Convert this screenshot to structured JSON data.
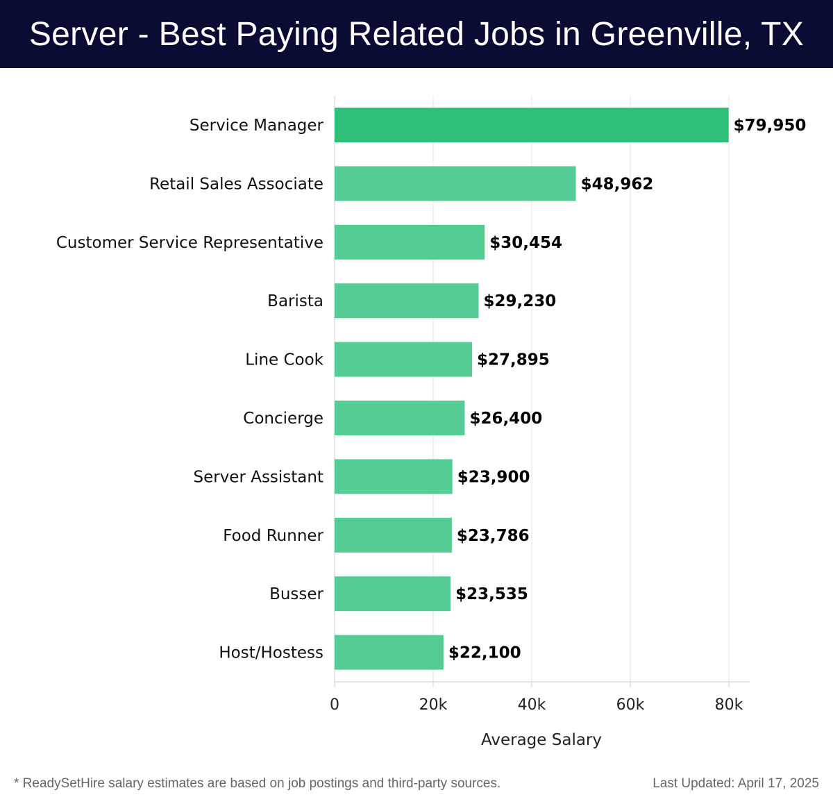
{
  "header": {
    "title": "Server - Best Paying Related Jobs in Greenville, TX"
  },
  "colors": {
    "header_bg": "#0b0c33",
    "bar_top": "#2ebf78",
    "bar": "#55cc94",
    "grid": "#e3e3e3"
  },
  "chart_data": {
    "type": "bar",
    "orientation": "horizontal",
    "title": "Server - Best Paying Related Jobs in Greenville, TX",
    "xlabel": "Average Salary",
    "ylabel": "",
    "xlim": [
      0,
      80000
    ],
    "xticks": [
      0,
      20000,
      40000,
      60000,
      80000
    ],
    "xtick_labels": [
      "0",
      "20k",
      "40k",
      "60k",
      "80k"
    ],
    "grid": true,
    "categories": [
      "Service Manager",
      "Retail Sales Associate",
      "Customer Service Representative",
      "Barista",
      "Line Cook",
      "Concierge",
      "Server Assistant",
      "Food Runner",
      "Busser",
      "Host/Hostess"
    ],
    "values": [
      79950,
      48962,
      30454,
      29230,
      27895,
      26400,
      23900,
      23786,
      23535,
      22100
    ],
    "value_labels": [
      "$79,950",
      "$48,962",
      "$30,454",
      "$29,230",
      "$27,895",
      "$26,400",
      "$23,900",
      "$23,786",
      "$23,535",
      "$22,100"
    ]
  },
  "footer": {
    "note": "* ReadySetHire salary estimates are based on job postings and third-party sources.",
    "updated": "Last Updated: April 17, 2025"
  }
}
